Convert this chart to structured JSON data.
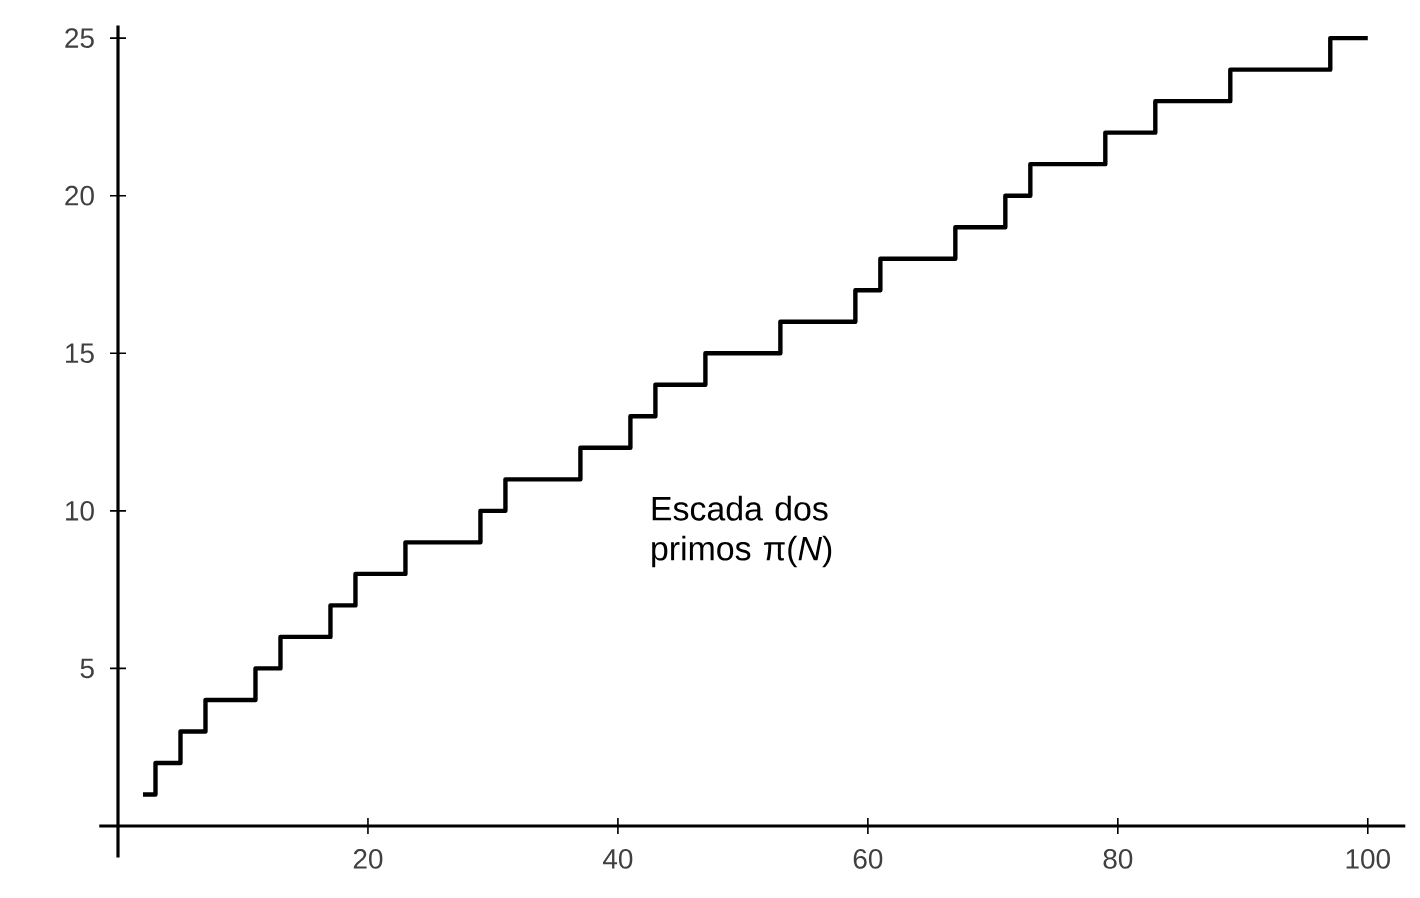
{
  "chart_data": {
    "type": "step",
    "x": [
      2,
      3,
      5,
      7,
      11,
      13,
      17,
      19,
      23,
      29,
      31,
      37,
      41,
      43,
      47,
      53,
      59,
      61,
      67,
      71,
      73,
      79,
      83,
      89,
      97,
      100
    ],
    "values": [
      1,
      2,
      3,
      4,
      5,
      6,
      7,
      8,
      9,
      10,
      11,
      12,
      13,
      14,
      15,
      16,
      17,
      18,
      19,
      20,
      21,
      22,
      23,
      24,
      25,
      25
    ],
    "color": "#000000",
    "xlim": [
      -1.5,
      103
    ],
    "ylim": [
      -1,
      25.4
    ],
    "xticks": [
      20,
      40,
      60,
      80,
      100
    ],
    "yticks": [
      5,
      10,
      15,
      20,
      25
    ],
    "annotations": [
      "Escada dos primos π(*N*)"
    ],
    "grid": false
  }
}
